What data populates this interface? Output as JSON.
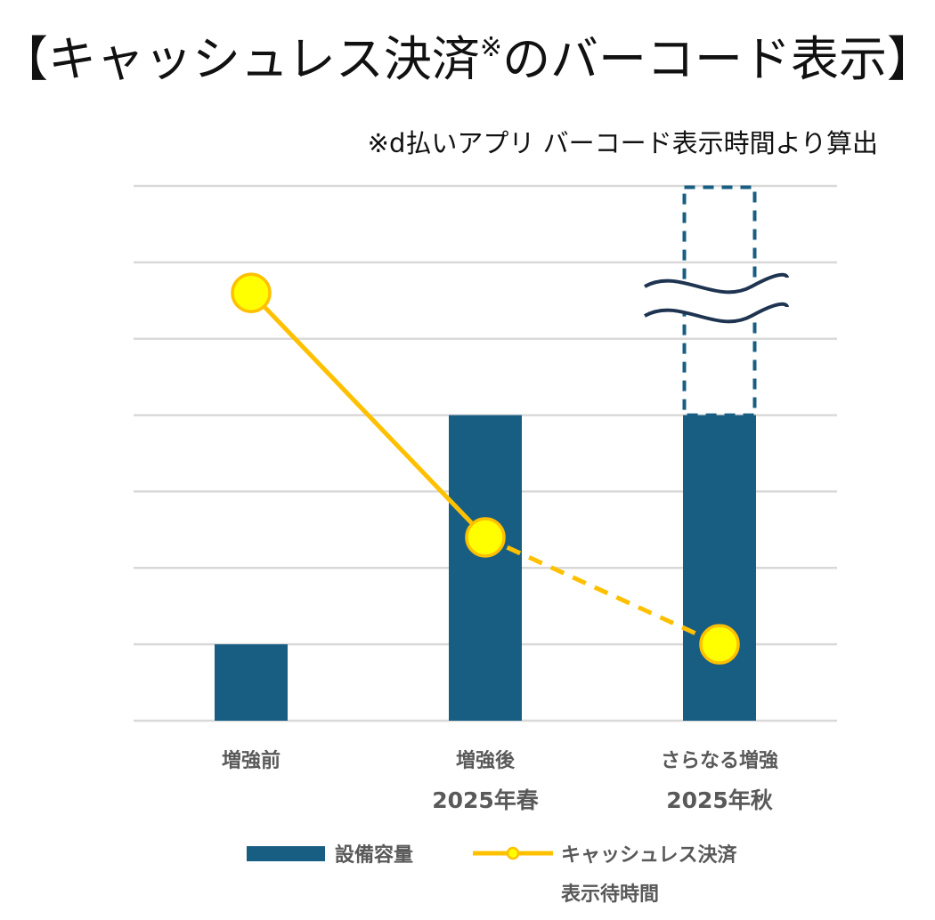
{
  "title": {
    "main_before": "【キャッシュレス決済",
    "mark": "※",
    "main_after": "のバーコード表示】"
  },
  "subtitle": "※d払いアプリ バーコード表示時間より算出",
  "colors": {
    "bar": "#175E82",
    "line": "#FFC000",
    "marker_fill": "#FFFF00",
    "grid": "#D9D9D9",
    "text": "#595959",
    "break_line": "#1F3450"
  },
  "chart_data": {
    "type": "bar",
    "categories": [
      {
        "line1": "増強前",
        "line2": ""
      },
      {
        "line1": "増強後",
        "line2": "2025年春"
      },
      {
        "line1": "さらなる増強",
        "line2": "2025年秋"
      }
    ],
    "grid": true,
    "ylim": [
      0,
      7
    ],
    "y_axis_labels_shown": false,
    "series": [
      {
        "name": "設備容量",
        "type": "bar",
        "values": [
          1,
          4,
          4
        ],
        "third_bar_extension_to": 7,
        "third_bar_note": "dashed outline with axis break"
      },
      {
        "name": "キャッシュレス決済表示待時間",
        "type": "line",
        "values": [
          5.6,
          2.4,
          1.0
        ],
        "dashed_from_index": 1
      }
    ],
    "legend": {
      "position": "bottom",
      "bar_label": "設備容量",
      "line_label_1": "キャッシュレス決済",
      "line_label_2": "表示待時間"
    }
  }
}
